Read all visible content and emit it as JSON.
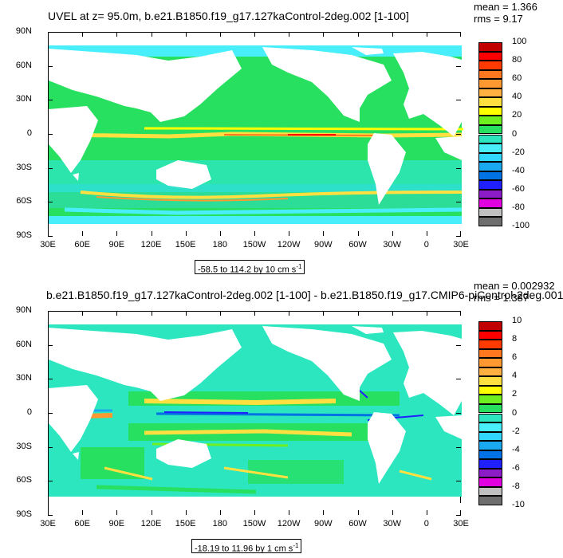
{
  "colors": {
    "water_levels": [
      "#6e6e6e",
      "#c0c0c0",
      "#e000e0",
      "#8c1cc8",
      "#2020ff",
      "#0072e4",
      "#1aa8f0",
      "#32d7ff",
      "#48eefa",
      "#2ce6c0",
      "#28e060",
      "#6ef020",
      "#ffff00",
      "#ffe040",
      "#ffb040",
      "#ff9830",
      "#ff7820",
      "#ff3a00",
      "#ff0000",
      "#c00000"
    ],
    "land": "#ffffff",
    "frame": "#000000"
  },
  "panels": [
    {
      "title": "UVEL at z=  95.0m, b.e21.B1850.f19_g17.127kaControl-2deg.002 [1-100]",
      "mean_text": "mean = 1.366",
      "rms_text": "rms = 9.17",
      "range_text": "-58.5 to 114.2 by 10 cm s",
      "range_sup": "-1",
      "colorbar_labels": [
        "100",
        "80",
        "60",
        "40",
        "20",
        "0",
        "-20",
        "-40",
        "-60",
        "-80",
        "-100"
      ]
    },
    {
      "title": "b.e21.B1850.f19_g17.127kaControl-2deg.002 [1-100] - b.e21.B1850.f19_g17.CMIP6-piControl-2deg.001",
      "mean_text": "mean = 0.002932",
      "rms_text": "rms = 1.387",
      "range_text": "-18.19 to 11.96 by 1 cm s",
      "range_sup": "-1",
      "colorbar_labels": [
        "10",
        "8",
        "6",
        "4",
        "2",
        "0",
        "-2",
        "-4",
        "-6",
        "-8",
        "-10"
      ]
    }
  ],
  "lat_labels": [
    "90N",
    "60N",
    "30N",
    "0",
    "30S",
    "60S",
    "90S"
  ],
  "lon_labels": [
    "30E",
    "60E",
    "90E",
    "120E",
    "150E",
    "180",
    "150W",
    "120W",
    "90W",
    "60W",
    "30W",
    "0",
    "30E"
  ]
}
